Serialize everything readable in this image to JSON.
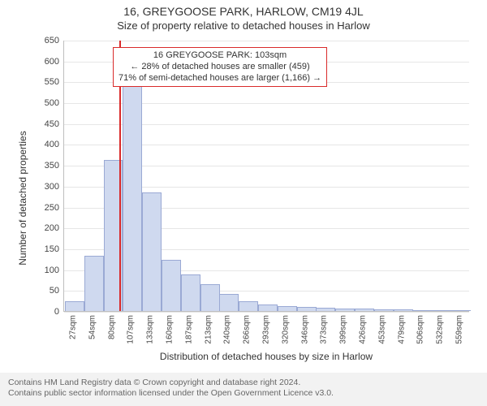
{
  "title": "16, GREYGOOSE PARK, HARLOW, CM19 4JL",
  "subtitle": "Size of property relative to detached houses in Harlow",
  "chart": {
    "type": "histogram",
    "y_title": "Number of detached properties",
    "x_title": "Distribution of detached houses by size in Harlow",
    "ylim_max": 650,
    "ytick_step": 50,
    "bar_fill": "#cfd9ef",
    "bar_stroke": "#9aa9d4",
    "grid_color": "#e6e6e6",
    "axis_color": "#bfbfbf",
    "marker_color": "#d92a2a",
    "marker_position_sqm": 103,
    "background_color": "#ffffff",
    "bin_start": 27,
    "bin_step": 26.6,
    "bins": [
      {
        "label": "27sqm",
        "value": 22
      },
      {
        "label": "54sqm",
        "value": 130
      },
      {
        "label": "80sqm",
        "value": 360
      },
      {
        "label": "107sqm",
        "value": 548
      },
      {
        "label": "133sqm",
        "value": 282
      },
      {
        "label": "160sqm",
        "value": 120
      },
      {
        "label": "187sqm",
        "value": 85
      },
      {
        "label": "213sqm",
        "value": 62
      },
      {
        "label": "240sqm",
        "value": 38
      },
      {
        "label": "266sqm",
        "value": 22
      },
      {
        "label": "293sqm",
        "value": 14
      },
      {
        "label": "320sqm",
        "value": 10
      },
      {
        "label": "346sqm",
        "value": 7
      },
      {
        "label": "373sqm",
        "value": 5
      },
      {
        "label": "399sqm",
        "value": 4
      },
      {
        "label": "426sqm",
        "value": 3
      },
      {
        "label": "453sqm",
        "value": 2
      },
      {
        "label": "479sqm",
        "value": 2
      },
      {
        "label": "506sqm",
        "value": 1
      },
      {
        "label": "532sqm",
        "value": 1
      },
      {
        "label": "559sqm",
        "value": 1
      }
    ],
    "annotation": {
      "border_color": "#d92a2a",
      "line1": "16 GREYGOOSE PARK: 103sqm",
      "line2": "← 28% of detached houses are smaller (459)",
      "line3": "71% of semi-detached houses are larger (1,166) →"
    }
  },
  "footer": {
    "line1": "Contains HM Land Registry data © Crown copyright and database right 2024.",
    "line2": "Contains public sector information licensed under the Open Government Licence v3.0."
  }
}
